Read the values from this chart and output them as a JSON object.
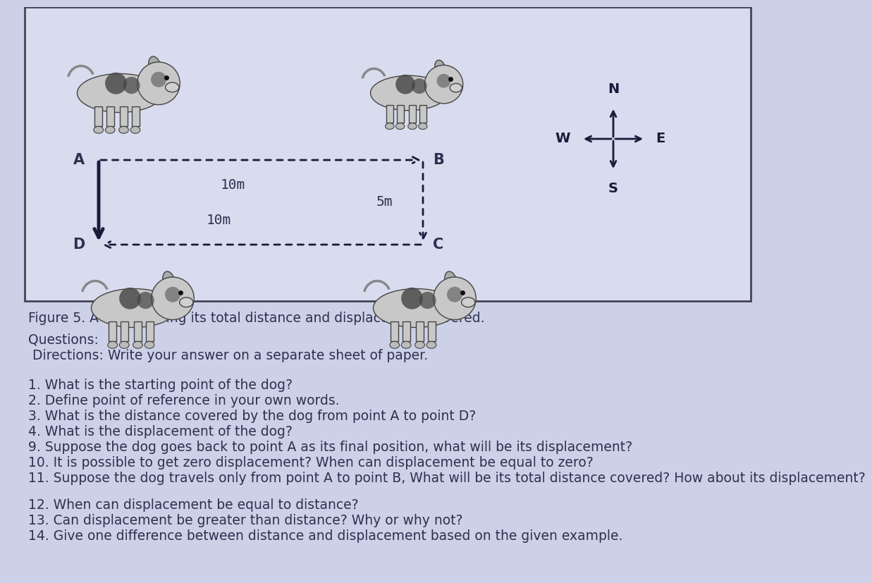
{
  "bg_color": "#cdd1e8",
  "box_bg": "#d8dcee",
  "box_border": "#444455",
  "text_color": "#2e3050",
  "figure_caption": "Figure 5. A dog showing its total distance and displacement covered.",
  "questions_header": "Questions:",
  "directions": " Directions: Write your answer on a separate sheet of paper.",
  "questions": [
    "1. What is the starting point of the dog?",
    "2. Define point of reference in your own words.",
    "3. What is the distance covered by the dog from point A to point D?",
    "4. What is the displacement of the dog?",
    "9. Suppose the dog goes back to point A as its final position, what will be its displacement?",
    "10. It is possible to get zero displacement? When can displacement be equal to zero?",
    "11. Suppose the dog travels only from point A to point B, What will be its total distance covered? How about its displacement?",
    "12. When can displacement be equal to distance?",
    "13. Can displacement be greater than distance? Why or why not?",
    "14. Give one difference between distance and displacement based on the given example."
  ],
  "label_A": "A",
  "label_B": "B",
  "label_C": "C",
  "label_D": "D",
  "dist_AB": "10m",
  "dist_BC": "5m",
  "dist_CD": "10m",
  "arrow_color": "#1a1a3a",
  "compass_color": "#1a1a3a"
}
